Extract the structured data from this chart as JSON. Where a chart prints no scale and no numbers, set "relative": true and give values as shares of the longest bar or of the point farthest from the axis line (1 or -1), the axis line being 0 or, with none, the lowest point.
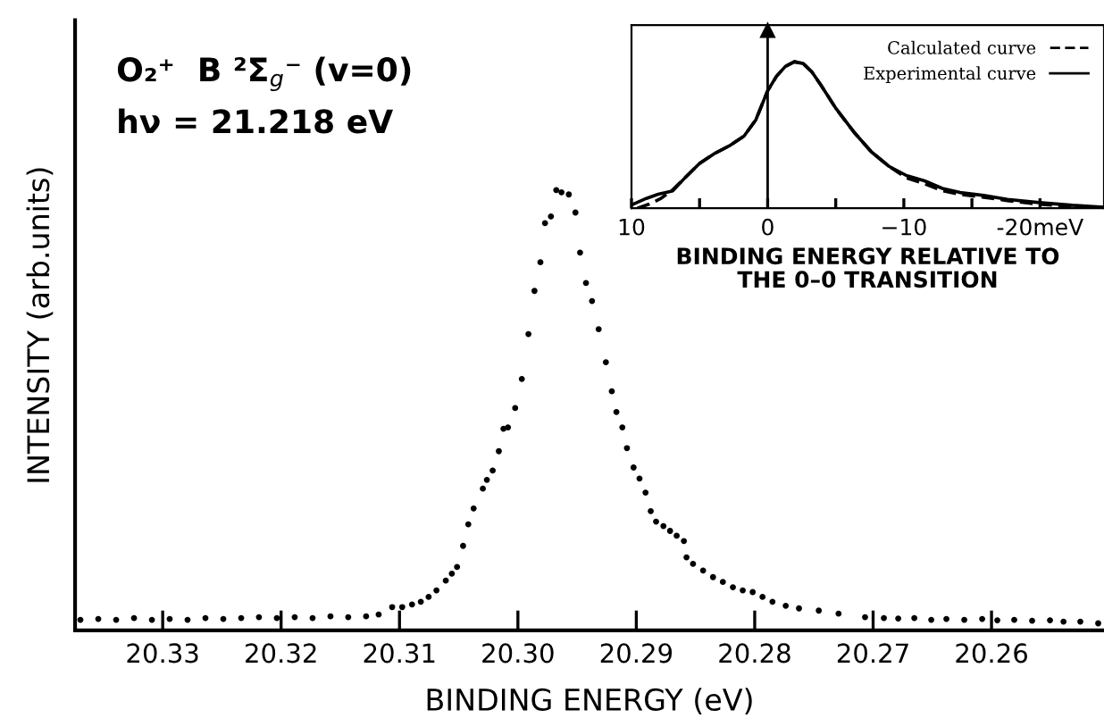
{
  "chart_data": [
    {
      "type": "scatter",
      "xlabel": "BINDING ENERGY (eV)",
      "ylabel": "INTENSITY (arb.units)",
      "relative": true,
      "marker": "circle",
      "grid": false,
      "legend": false,
      "tick_labels": "x",
      "annotations": [
        "O₂⁺  B ²Σ$_{g}$⁻ (v=0)",
        "hν = 21.218 eV"
      ],
      "xlim": [
        20.3374,
        20.2505
      ],
      "xticks": [
        20.33,
        20.32,
        20.31,
        {
          "value": 20.3,
          "label": "20.30"
        },
        20.29,
        20.28,
        20.27,
        20.26
      ],
      "series": [
        {
          "color": "#000000",
          "x": [
            20.33695,
            20.33544,
            20.33393,
            20.33242,
            20.33091,
            20.32941,
            20.3279,
            20.32639,
            20.32488,
            20.32337,
            20.32187,
            20.32036,
            20.31885,
            20.31734,
            20.31583,
            20.31433,
            20.31282,
            20.31176,
            20.31062,
            20.30977,
            20.30894,
            20.3082,
            20.30754,
            20.30688,
            20.30609,
            20.30558,
            20.30514,
            20.30463,
            20.30419,
            20.30374,
            20.30296,
            20.30262,
            20.30213,
            20.30161,
            20.30122,
            20.30084,
            20.30023,
            20.29967,
            20.29911,
            20.2986,
            20.2981,
            20.29771,
            20.29721,
            20.29676,
            20.29632,
            20.2957,
            20.29514,
            20.29475,
            20.29425,
            20.29374,
            20.29318,
            20.29257,
            20.29207,
            20.29168,
            20.29118,
            20.29079,
            20.29023,
            20.28973,
            20.28922,
            20.28878,
            20.28833,
            20.28771,
            20.28715,
            20.28659,
            20.28598,
            20.28576,
            20.28521,
            20.28436,
            20.28352,
            20.28269,
            20.28184,
            20.28101,
            20.28017,
            20.27934,
            20.2785,
            20.27738,
            20.27626,
            20.27459,
            20.27292,
            20.27068,
            20.26909,
            20.26788,
            20.26652,
            20.26509,
            20.26381,
            20.2623,
            20.26079,
            20.25951,
            20.25808,
            20.25657,
            20.25506,
            20.25392,
            20.2525,
            20.25099
          ],
          "values": [
            0.024,
            0.026,
            0.024,
            0.028,
            0.024,
            0.026,
            0.024,
            0.028,
            0.026,
            0.028,
            0.03,
            0.028,
            0.03,
            0.028,
            0.032,
            0.03,
            0.032,
            0.036,
            0.053,
            0.053,
            0.059,
            0.065,
            0.076,
            0.091,
            0.113,
            0.129,
            0.144,
            0.192,
            0.241,
            0.277,
            0.322,
            0.342,
            0.363,
            0.407,
            0.458,
            0.461,
            0.505,
            0.571,
            0.673,
            0.771,
            0.836,
            0.925,
            0.94,
            1.0,
            0.995,
            0.99,
            0.949,
            0.858,
            0.789,
            0.748,
            0.684,
            0.609,
            0.543,
            0.496,
            0.461,
            0.414,
            0.37,
            0.345,
            0.313,
            0.271,
            0.247,
            0.237,
            0.226,
            0.215,
            0.203,
            0.166,
            0.151,
            0.136,
            0.121,
            0.11,
            0.098,
            0.091,
            0.087,
            0.076,
            0.065,
            0.056,
            0.05,
            0.045,
            0.038,
            0.03,
            0.028,
            0.027,
            0.028,
            0.024,
            0.026,
            0.024,
            0.026,
            0.023,
            0.024,
            0.022,
            0.023,
            0.02,
            0.02,
            0.016
          ]
        }
      ]
    },
    {
      "type": "line",
      "xlabel": "BINDING ENERGY RELATIVE TO\nTHE 0–0 TRANSITION",
      "relative": true,
      "legend": "top right",
      "grid": false,
      "tick_labels": "x",
      "xlim": [
        10,
        -24.7
      ],
      "xticks": [
        10,
        {
          "value": 5,
          "label": null
        },
        0,
        {
          "value": -5,
          "label": null
        },
        {
          "value": -10,
          "label": "−10"
        },
        {
          "value": -15,
          "label": null
        },
        {
          "value": -20,
          "label": "-20meV"
        }
      ],
      "ref_lines": [
        {
          "axis": "x",
          "value": 0
        }
      ],
      "series": [
        {
          "name": "Calculated curve",
          "color": "#000000",
          "line_style": "dashed",
          "x": [
            9.57,
            8.7,
            7.83,
            6.96,
            6.09,
            5.0,
            3.91,
            2.83,
            1.74,
            0.87,
            0,
            -0.65,
            -1.3,
            -1.96,
            -2.61,
            -3.26,
            -3.91,
            -5.0,
            -6.3,
            -7.61,
            -8.91,
            -10.22,
            -11.52,
            -12.83,
            -14.13,
            -15.87,
            -17.61,
            -19.78,
            -22.39,
            -24.57
          ],
          "values": [
            0,
            0.028,
            0.067,
            0.127,
            0.206,
            0.306,
            0.373,
            0.425,
            0.492,
            0.603,
            0.802,
            0.901,
            0.968,
            1.0,
            0.988,
            0.929,
            0.841,
            0.683,
            0.524,
            0.385,
            0.286,
            0.206,
            0.167,
            0.119,
            0.095,
            0.075,
            0.052,
            0.028,
            0.012,
            0.004
          ]
        },
        {
          "name": "Experimental curve",
          "color": "#000000",
          "line_style": "solid",
          "x": [
            9.87,
            8.91,
            8.04,
            6.96,
            6.09,
            5.0,
            3.91,
            2.83,
            1.74,
            0.87,
            0,
            -0.65,
            -1.3,
            -1.96,
            -2.61,
            -3.26,
            -3.91,
            -5.0,
            -6.3,
            -7.61,
            -8.91,
            -10.22,
            -11.52,
            -12.83,
            -14.13,
            -15.87,
            -17.61,
            -19.78,
            -22.39,
            -24.57
          ],
          "values": [
            0.028,
            0.067,
            0.095,
            0.119,
            0.206,
            0.306,
            0.373,
            0.425,
            0.492,
            0.603,
            0.802,
            0.901,
            0.968,
            1.0,
            0.988,
            0.929,
            0.841,
            0.683,
            0.524,
            0.385,
            0.286,
            0.222,
            0.187,
            0.135,
            0.107,
            0.087,
            0.06,
            0.04,
            0.02,
            0.008
          ]
        }
      ]
    }
  ]
}
